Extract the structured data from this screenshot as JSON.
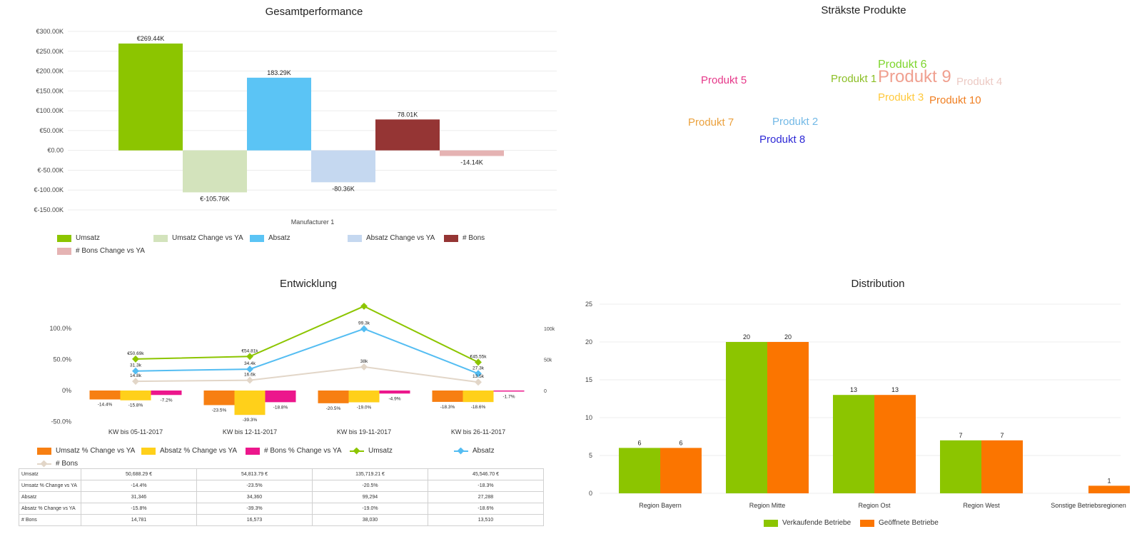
{
  "panels": {
    "gesamt": {
      "title": "Gesamtperformance"
    },
    "cloud": {
      "title": "Sträkste Produkte"
    },
    "entw": {
      "title": "Entwicklung"
    },
    "dist": {
      "title": "Distribution"
    }
  },
  "chart_data": [
    {
      "id": "gesamtperformance",
      "type": "bar",
      "title": "Gesamtperformance",
      "categories": [
        "Manufacturer 1"
      ],
      "xlabel": "Manufacturer 1",
      "ylim": [
        -150000,
        300000
      ],
      "yticks": [
        "€300.00K",
        "€250.00K",
        "€200.00K",
        "€150.00K",
        "€100.00K",
        "€50.00K",
        "€0.00",
        "€-50.00K",
        "€-100.00K",
        "€-150.00K"
      ],
      "ytick_values": [
        300000,
        250000,
        200000,
        150000,
        100000,
        50000,
        0,
        -50000,
        -100000,
        -150000
      ],
      "grid": true,
      "series": [
        {
          "name": "Umsatz",
          "values": [
            269440
          ],
          "label": "€269.44K",
          "color": "#8cc500"
        },
        {
          "name": "Umsatz Change vs YA",
          "values": [
            -105760
          ],
          "label": "€-105.76K",
          "color": "#d3e3bc"
        },
        {
          "name": "Absatz",
          "values": [
            183290
          ],
          "label": "183.29K",
          "color": "#5bc4f5"
        },
        {
          "name": "Absatz Change vs YA",
          "values": [
            -80360
          ],
          "label": "-80.36K",
          "color": "#c5d8f0"
        },
        {
          "name": "# Bons",
          "values": [
            78010
          ],
          "label": "78.01K",
          "color": "#953534"
        },
        {
          "name": "# Bons Change vs YA",
          "values": [
            -14140
          ],
          "label": "-14.14K",
          "color": "#e5b3b3"
        }
      ]
    },
    {
      "id": "wordcloud",
      "type": "other",
      "title": "Sträkste Produkte",
      "words": [
        {
          "text": "Produkt 6",
          "color": "#7ed52d"
        },
        {
          "text": "Produkt 5",
          "color": "#e6398a"
        },
        {
          "text": "Produkt 1",
          "color": "#8cbf26"
        },
        {
          "text": "Produkt 9",
          "color": "#f0a090"
        },
        {
          "text": "Produkt 4",
          "color": "#eccac4"
        },
        {
          "text": "Produkt 3",
          "color": "#ffc93c"
        },
        {
          "text": "Produkt 10",
          "color": "#f07f22"
        },
        {
          "text": "Produkt 7",
          "color": "#eba13d"
        },
        {
          "text": "Produkt 2",
          "color": "#73b9e6"
        },
        {
          "text": "Produkt 8",
          "color": "#2f2ad6"
        }
      ]
    },
    {
      "id": "entwicklung",
      "type": "bar",
      "title": "Entwicklung",
      "categories": [
        "KW bis 05-11-2017",
        "KW bis 12-11-2017",
        "KW bis 19-11-2017",
        "KW bis 26-11-2017"
      ],
      "left_axis": {
        "ticks": [
          "100.0%",
          "50.0%",
          "0%",
          "-50.0%"
        ],
        "values": [
          100,
          50,
          0,
          -50
        ],
        "ylim": [
          -50,
          100
        ]
      },
      "right_axis": {
        "ticks": [
          "100k",
          "50k",
          "0"
        ],
        "values": [
          100000,
          50000,
          0
        ],
        "ylim": [
          -50000,
          100000
        ]
      },
      "bar_series": [
        {
          "name": "Umsatz % Change vs YA",
          "values": [
            -14.4,
            -23.5,
            -20.5,
            -18.3
          ],
          "labels": [
            "-14.4%",
            "-23.5%",
            "-20.5%",
            "-18.3%"
          ],
          "color": "#f77f12"
        },
        {
          "name": "Absatz % Change vs YA",
          "values": [
            -15.8,
            -39.3,
            -19.0,
            -18.6
          ],
          "labels": [
            "-15.8%",
            "-39.3%",
            "-19.0%",
            "-18.6%"
          ],
          "color": "#ffd01a"
        },
        {
          "name": "# Bons % Change vs YA",
          "values": [
            -7.2,
            -18.8,
            -4.9,
            -1.7
          ],
          "labels": [
            "-7.2%",
            "-18.8%",
            "-4.9%",
            "-1.7%"
          ],
          "color": "#ec178c"
        }
      ],
      "line_series": [
        {
          "name": "Umsatz",
          "values": [
            50688.29,
            54813.79,
            135719.21,
            45546.7
          ],
          "labels": [
            "€50.69k",
            "€54.81k",
            "",
            "€45.55k"
          ],
          "color": "#8cc500"
        },
        {
          "name": "Absatz",
          "values": [
            31346,
            34360,
            99294,
            27288
          ],
          "labels": [
            "31.3k",
            "34.4k",
            "99.3k",
            "27.3k"
          ],
          "color": "#54bdf2"
        },
        {
          "name": "# Bons",
          "values": [
            14781,
            16573,
            38030,
            13510
          ],
          "labels": [
            "14.8k",
            "16.6k",
            "38k",
            "13.5k"
          ],
          "color": "#e2d6c8"
        }
      ],
      "table": {
        "rows": [
          {
            "label": "Umsatz",
            "cells": [
              "50,688.29 €",
              "54,813.79 €",
              "135,719.21 €",
              "45,546.70 €"
            ]
          },
          {
            "label": "Umsatz % Change vs YA",
            "cells": [
              "-14.4%",
              "-23.5%",
              "-20.5%",
              "-18.3%"
            ]
          },
          {
            "label": "Absatz",
            "cells": [
              "31,346",
              "34,360",
              "99,294",
              "27,288"
            ]
          },
          {
            "label": "Absatz % Change vs YA",
            "cells": [
              "-15.8%",
              "-39.3%",
              "-19.0%",
              "-18.6%"
            ]
          },
          {
            "label": "# Bons",
            "cells": [
              "14,781",
              "16,573",
              "38,030",
              "13,510"
            ]
          }
        ]
      }
    },
    {
      "id": "distribution",
      "type": "bar",
      "title": "Distribution",
      "categories": [
        "Region Bayern",
        "Region Mitte",
        "Region Ost",
        "Region West",
        "Sonstige Betriebsregionen"
      ],
      "ylim": [
        0,
        25
      ],
      "yticks": [
        "25",
        "20",
        "15",
        "10",
        "5",
        "0"
      ],
      "ytick_values": [
        25,
        20,
        15,
        10,
        5,
        0
      ],
      "grid": true,
      "series": [
        {
          "name": "Verkaufende Betriebe",
          "values": [
            6,
            20,
            13,
            7,
            null
          ],
          "labels": [
            "6",
            "20",
            "13",
            "7",
            ""
          ],
          "color": "#8cc500"
        },
        {
          "name": "Geöffnete Betriebe",
          "values": [
            6,
            20,
            13,
            7,
            1
          ],
          "labels": [
            "6",
            "20",
            "13",
            "7",
            "1"
          ],
          "color": "#fb7500"
        }
      ]
    }
  ]
}
